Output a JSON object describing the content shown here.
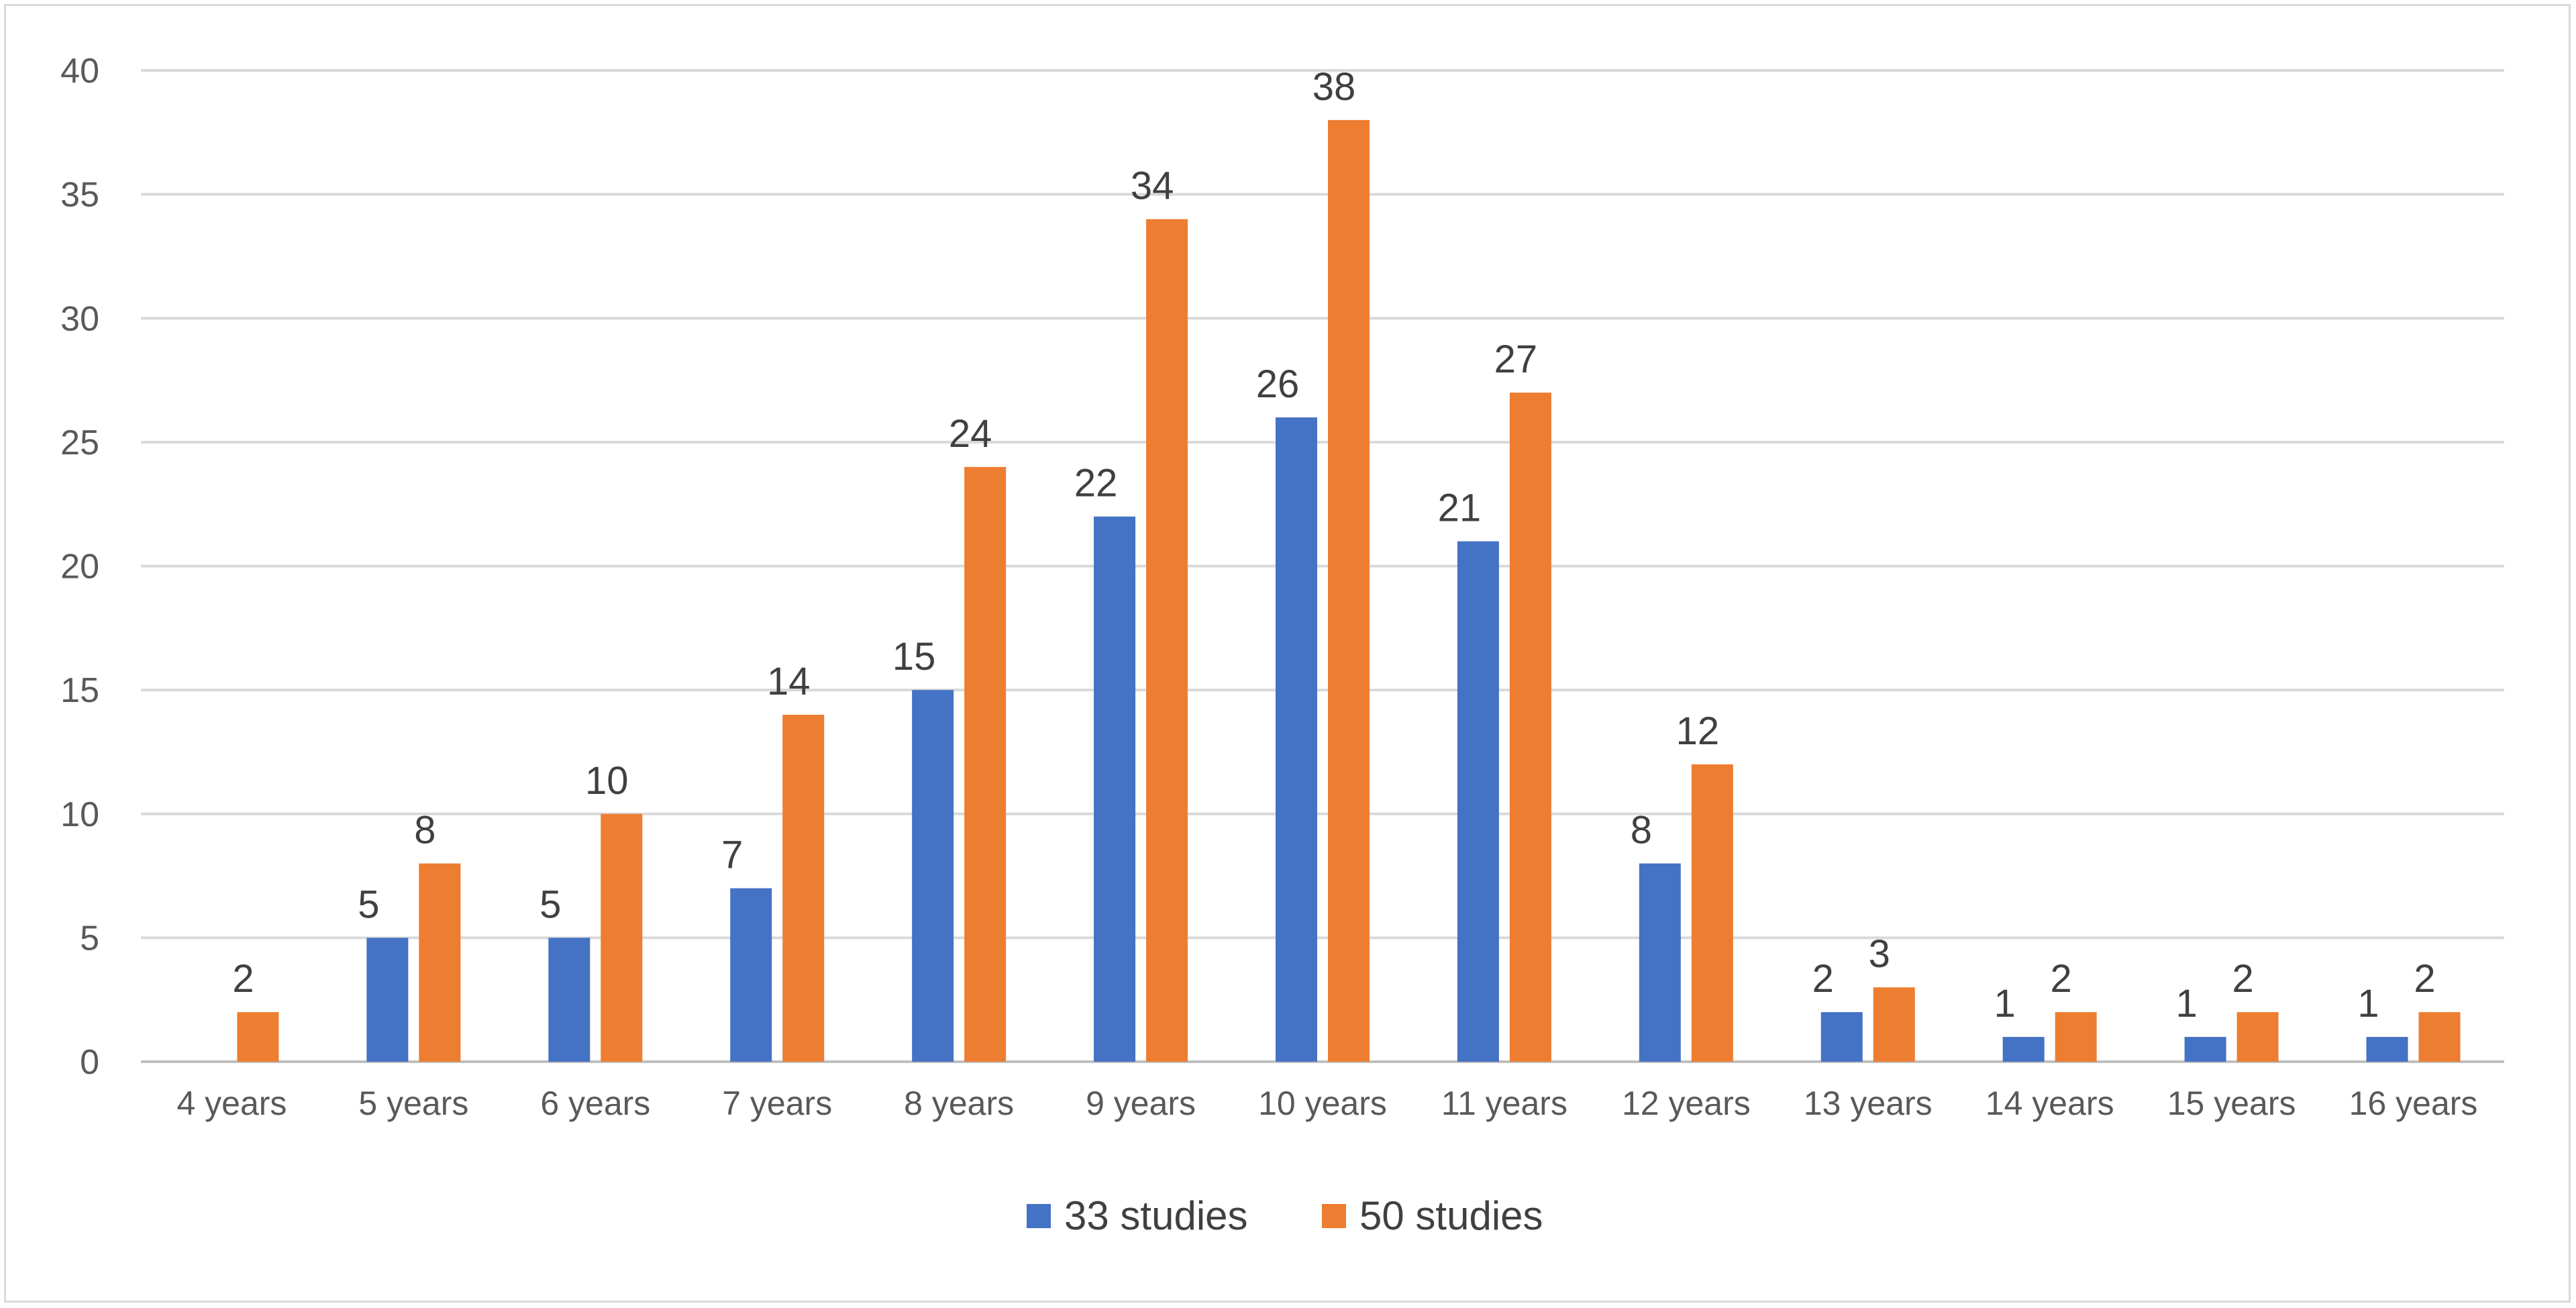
{
  "chart_data": {
    "type": "bar",
    "title": "",
    "xlabel": "",
    "ylabel": "",
    "ylim": [
      0,
      40
    ],
    "ytick_step": 5,
    "grid": true,
    "legend_position": "bottom",
    "categories": [
      "4 years",
      "5 years",
      "6 years",
      "7 years",
      "8 years",
      "9 years",
      "10 years",
      "11 years",
      "12 years",
      "13 years",
      "14 years",
      "15 years",
      "16 years"
    ],
    "series": [
      {
        "name": "33 studies",
        "color": "#4472c4",
        "values": [
          null,
          5,
          5,
          7,
          15,
          22,
          26,
          21,
          8,
          2,
          1,
          1,
          1
        ]
      },
      {
        "name": "50 studies",
        "color": "#ed7d31",
        "values": [
          2,
          8,
          10,
          14,
          24,
          34,
          38,
          27,
          12,
          3,
          2,
          2,
          2
        ]
      }
    ],
    "data_labels": true
  }
}
